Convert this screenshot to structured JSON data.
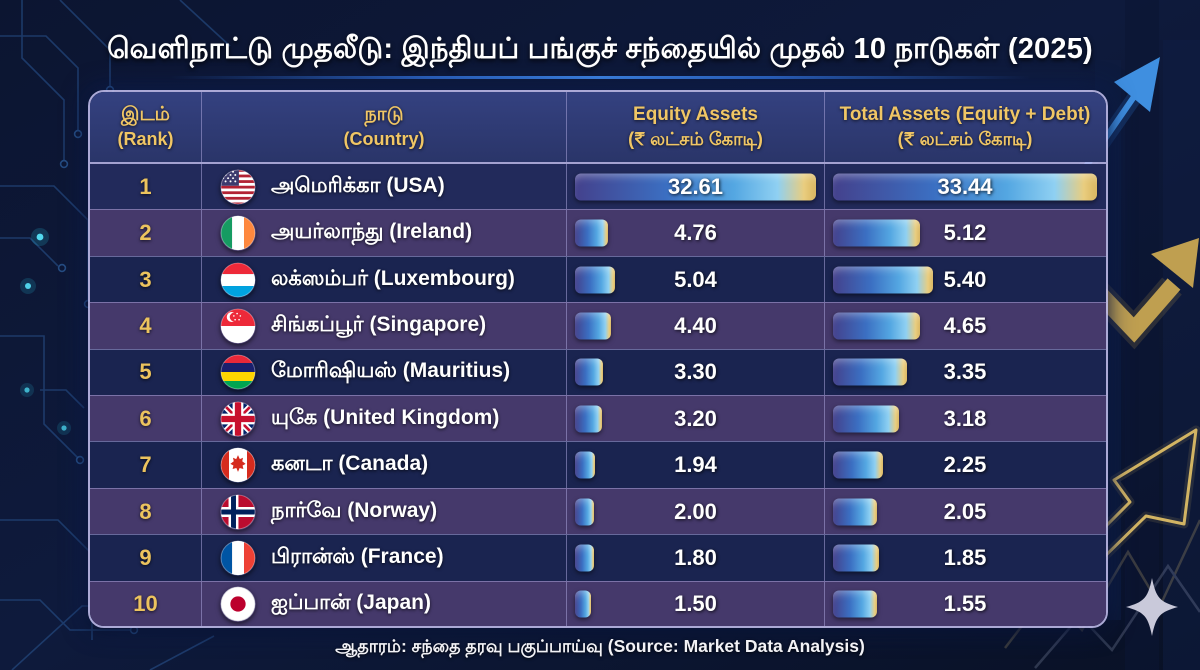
{
  "title": "வெளிநாட்டு முதலீடு: இந்தியப் பங்குச் சந்தையில் முதல் 10 நாடுகள் (2025)",
  "footer": "ஆதாரம்: சந்தை தரவு பகுப்பாய்வு (Source: Market Data Analysis)",
  "colors": {
    "accent_gold": "#ecc35e",
    "header_text_gold": "#f0c665",
    "row_dark_navy": "#1a2450",
    "row_purple": "#45396b",
    "header_bg_blue": "#2f3b74",
    "bar_blue": "#54a7e2",
    "bar_gold_tip": "#d9b55e",
    "title_white": "#ffffff"
  },
  "table": {
    "headers": {
      "rank_ta": "இடம்",
      "rank_en": "(Rank)",
      "country_ta": "நாடு",
      "country_en": "(Country)",
      "equity_l1": "Equity Assets",
      "equity_l2": "(₹ லட்சம் கோடி)",
      "total_l1": "Total Assets (Equity + Debt)",
      "total_l2": "(₹ லட்சம் கோடி)"
    },
    "rows": [
      {
        "rank": "1",
        "country": "அமெரிக்கா (USA)",
        "flag": "usa",
        "equity": "32.61",
        "total": "33.44",
        "equity_bar_pct": 100,
        "total_bar_pct": 100
      },
      {
        "rank": "2",
        "country": "அயர்லாந்து (Ireland)",
        "flag": "ireland",
        "equity": "4.76",
        "total": "5.12",
        "equity_bar_pct": 13.5,
        "total_bar_pct": 33
      },
      {
        "rank": "3",
        "country": "லக்ஸம்பர் (Luxembourg)",
        "flag": "luxembourg",
        "equity": "5.04",
        "total": "5.40",
        "equity_bar_pct": 16.5,
        "total_bar_pct": 38
      },
      {
        "rank": "4",
        "country": "சிங்கப்பூர் (Singapore)",
        "flag": "singapore",
        "equity": "4.40",
        "total": "4.65",
        "equity_bar_pct": 15,
        "total_bar_pct": 33
      },
      {
        "rank": "5",
        "country": "மோரிஷியஸ் (Mauritius)",
        "flag": "mauritius",
        "equity": "3.30",
        "total": "3.35",
        "equity_bar_pct": 11.5,
        "total_bar_pct": 28
      },
      {
        "rank": "6",
        "country": "யுகே (United Kingdom)",
        "flag": "uk",
        "equity": "3.20",
        "total": "3.18",
        "equity_bar_pct": 11,
        "total_bar_pct": 25
      },
      {
        "rank": "7",
        "country": "கனடா (Canada)",
        "flag": "canada",
        "equity": "1.94",
        "total": "2.25",
        "equity_bar_pct": 8.5,
        "total_bar_pct": 19
      },
      {
        "rank": "8",
        "country": "நார்வே (Norway)",
        "flag": "norway",
        "equity": "2.00",
        "total": "2.05",
        "equity_bar_pct": 8,
        "total_bar_pct": 16.5
      },
      {
        "rank": "9",
        "country": "பிரான்ஸ் (France)",
        "flag": "france",
        "equity": "1.80",
        "total": "1.85",
        "equity_bar_pct": 8,
        "total_bar_pct": 17.5
      },
      {
        "rank": "10",
        "country": "ஐப்பான் (Japan)",
        "flag": "japan",
        "equity": "1.50",
        "total": "1.55",
        "equity_bar_pct": 6.5,
        "total_bar_pct": 16.5
      }
    ]
  },
  "chart_data": {
    "type": "bar",
    "title": "வெளிநாட்டு முதலீடு: இந்தியப் பங்குச் சந்தையில் முதல் 10 நாடுகள் (2025)",
    "categories": [
      "அமெரிக்கா (USA)",
      "அயர்லாந்து (Ireland)",
      "லக்ஸம்பர் (Luxembourg)",
      "சிங்கப்பூர் (Singapore)",
      "மோரிஷியஸ் (Mauritius)",
      "யுகே (United Kingdom)",
      "கனடா (Canada)",
      "நார்வே (Norway)",
      "பிரான்ஸ் (France)",
      "ஐப்பான் (Japan)"
    ],
    "ranks": [
      1,
      2,
      3,
      4,
      5,
      6,
      7,
      8,
      9,
      10
    ],
    "series": [
      {
        "name": "Equity Assets (₹ லட்சம் கோடி)",
        "values": [
          32.61,
          4.76,
          5.04,
          4.4,
          3.3,
          3.2,
          1.94,
          2.0,
          1.8,
          1.5
        ]
      },
      {
        "name": "Total Assets (Equity + Debt) (₹ லட்சம் கோடி)",
        "values": [
          33.44,
          5.12,
          5.4,
          4.65,
          3.35,
          3.18,
          2.25,
          2.05,
          1.85,
          1.55
        ]
      }
    ],
    "xlabel": "நாடு (Country)",
    "ylabel": "₹ லட்சம் கோடி",
    "legend_position": "column headers",
    "grid": false,
    "source": "ஆதாரம்: சந்தை தரவு பகுப்பாய்வு (Source: Market Data Analysis)"
  }
}
